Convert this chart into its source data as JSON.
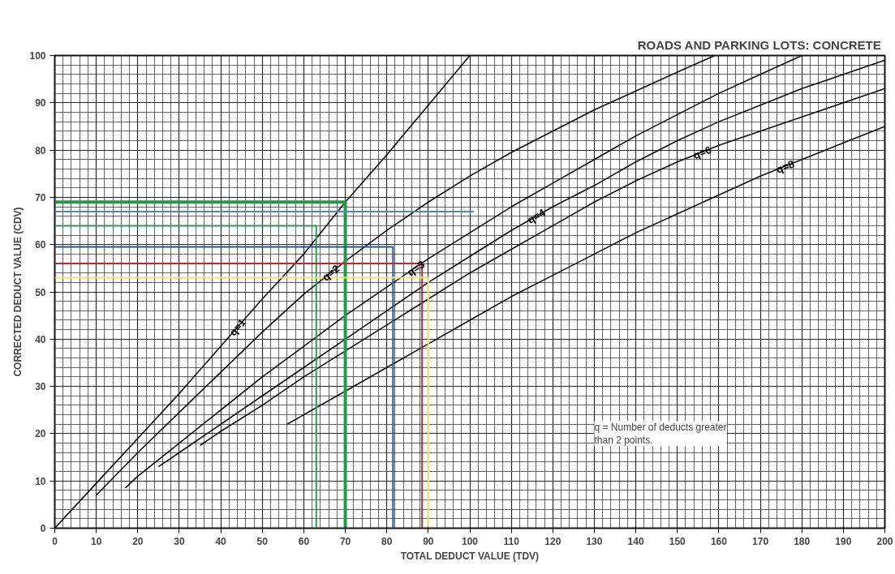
{
  "chart_data": {
    "type": "line",
    "title": "ROADS AND PARKING LOTS:  CONCRETE",
    "xlabel": "TOTAL DEDUCT VALUE (TDV)",
    "ylabel": "CORRECTED DEDUCT VALUE (CDV)",
    "xlim": [
      0,
      200
    ],
    "ylim": [
      0,
      100
    ],
    "xticks": [
      0,
      10,
      20,
      30,
      40,
      50,
      60,
      70,
      80,
      90,
      100,
      110,
      120,
      130,
      140,
      150,
      160,
      170,
      180,
      190,
      200
    ],
    "yticks": [
      0,
      10,
      20,
      30,
      40,
      50,
      60,
      70,
      80,
      90,
      100
    ],
    "grid": true,
    "marker": "none",
    "line_style": "solid",
    "series": [
      {
        "color": "#111111",
        "x": [
          0,
          10,
          20,
          30,
          40,
          50,
          60,
          70,
          80,
          90,
          100
        ],
        "values": [
          0,
          9.5,
          19,
          28.5,
          38.5,
          48.5,
          58,
          69,
          79,
          89.5,
          100
        ]
      },
      {
        "color": "#111111",
        "x": [
          10,
          20,
          30,
          40,
          50,
          60,
          70,
          80,
          90,
          100,
          110,
          120,
          130,
          140,
          150,
          159
        ],
        "values": [
          7,
          16,
          24.5,
          33,
          41.5,
          49.5,
          56.5,
          63,
          69,
          74.5,
          79.5,
          84,
          88.5,
          92.5,
          96.5,
          100
        ]
      },
      {
        "color": "#111111",
        "x": [
          17,
          20,
          30,
          40,
          50,
          60,
          70,
          80,
          90,
          100,
          110,
          120,
          130,
          140,
          150,
          160,
          170,
          180
        ],
        "values": [
          8.5,
          11,
          18,
          25,
          32,
          38.5,
          45,
          51,
          57,
          62.5,
          68,
          73,
          78,
          83,
          87.5,
          92,
          96,
          100
        ]
      },
      {
        "color": "#111111",
        "x": [
          25,
          30,
          40,
          50,
          60,
          70,
          80,
          90,
          100,
          110,
          120,
          130,
          140,
          150,
          160,
          170,
          180,
          190,
          200
        ],
        "values": [
          13,
          16,
          22,
          28,
          34,
          40,
          46,
          52,
          57.5,
          63,
          68,
          72.5,
          77.5,
          82,
          86,
          89.5,
          93,
          96,
          99
        ]
      },
      {
        "color": "#111111",
        "x": [
          35,
          40,
          50,
          60,
          70,
          80,
          90,
          100,
          110,
          120,
          130,
          140,
          150,
          160,
          170,
          180,
          190,
          200
        ],
        "values": [
          17.5,
          20.5,
          26,
          32,
          37.5,
          43,
          48.5,
          54,
          59,
          64,
          69,
          73.5,
          77.5,
          81,
          84,
          87,
          90,
          93
        ]
      },
      {
        "color": "#111111",
        "x": [
          56,
          60,
          70,
          80,
          90,
          100,
          110,
          120,
          130,
          140,
          150,
          160,
          170,
          180,
          190,
          200
        ],
        "values": [
          22,
          24,
          29,
          34,
          39,
          44,
          49,
          53.5,
          58,
          62.5,
          66.5,
          70.5,
          74.5,
          78,
          81.5,
          85
        ]
      },
      {
        "color": "#1e9b45",
        "x": [
          0,
          70,
          70
        ],
        "values": [
          69,
          69,
          0
        ]
      },
      {
        "color": "#5a85bf",
        "x": [
          0,
          101
        ],
        "values": [
          67,
          67
        ]
      },
      {
        "color": "#2f9a5a",
        "x": [
          0,
          63,
          63
        ],
        "values": [
          64,
          64,
          0
        ]
      },
      {
        "color": "#2553a3",
        "x": [
          0,
          81.5,
          81.5
        ],
        "values": [
          59.5,
          59.5,
          0
        ]
      },
      {
        "color": "#c4262e",
        "x": [
          0,
          88.5,
          88.5
        ],
        "values": [
          56,
          56,
          0
        ]
      },
      {
        "color": "#ebe46a",
        "x": [
          0,
          90,
          90
        ],
        "values": [
          53,
          53,
          0
        ]
      }
    ],
    "annotations": [
      {
        "text": "q=1",
        "x": 44,
        "y": 42.5
      },
      {
        "text": "q=2",
        "x": 66.5,
        "y": 54
      },
      {
        "text": "q=3",
        "x": 87,
        "y": 55
      },
      {
        "text": "q=4",
        "x": 116,
        "y": 66
      },
      {
        "text": "q=6",
        "x": 156,
        "y": 79.5
      },
      {
        "text": "q=8",
        "x": 176,
        "y": 76.5
      },
      "q = Number of deducts greater\n      than 2 points."
    ]
  }
}
